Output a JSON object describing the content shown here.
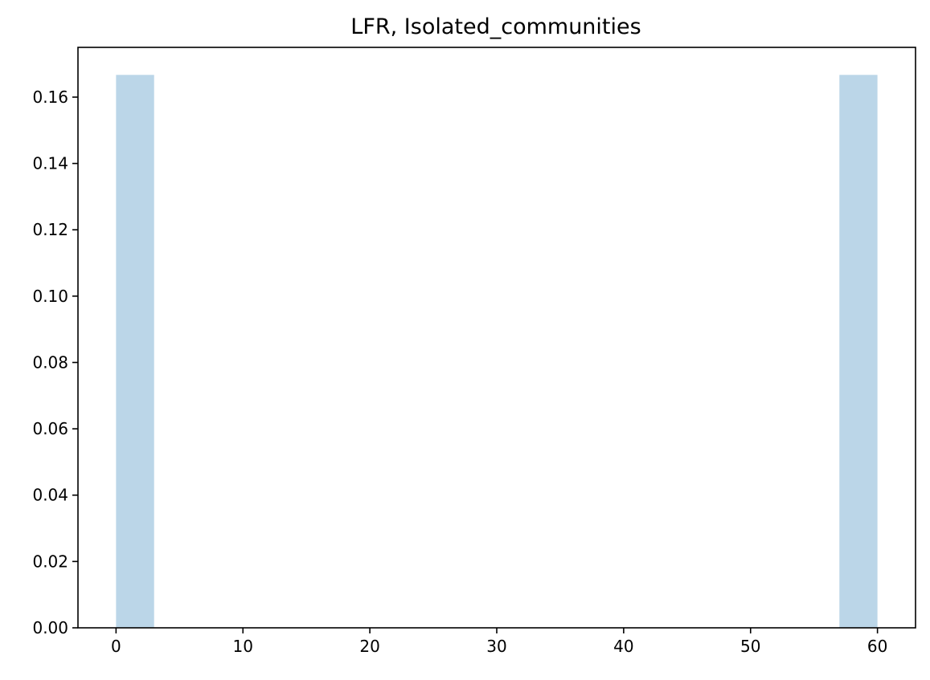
{
  "chart_data": {
    "type": "bar",
    "title": "LFR, Isolated_communities",
    "xlabel": "",
    "ylabel": "",
    "bins": [
      {
        "x0": 0,
        "x1": 3,
        "value": 0.1667
      },
      {
        "x0": 57,
        "x1": 60,
        "value": 0.1667
      }
    ],
    "xlim": [
      -3,
      63
    ],
    "ylim": [
      0,
      0.175
    ],
    "xticks": [
      0,
      10,
      20,
      30,
      40,
      50,
      60
    ],
    "xtick_labels": [
      "0",
      "10",
      "20",
      "30",
      "40",
      "50",
      "60"
    ],
    "yticks": [
      0.0,
      0.02,
      0.04,
      0.06,
      0.08,
      0.1,
      0.12,
      0.14,
      0.16
    ],
    "ytick_labels": [
      "0.00",
      "0.02",
      "0.04",
      "0.06",
      "0.08",
      "0.10",
      "0.12",
      "0.14",
      "0.16"
    ],
    "bar_color": "#bbd6e8",
    "grid": false,
    "legend": "none"
  }
}
